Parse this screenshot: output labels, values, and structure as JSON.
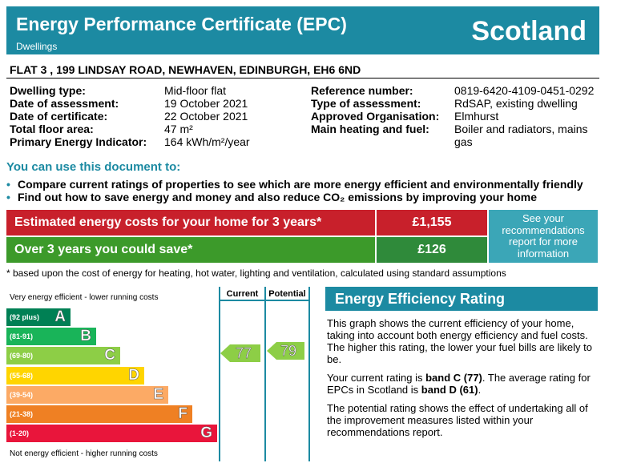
{
  "header": {
    "title": "Energy Performance Certificate (EPC)",
    "subtitle": "Dwellings",
    "country": "Scotland"
  },
  "address": "FLAT 3 , 199 LINDSAY ROAD, NEWHAVEN, EDINBURGH, EH6 6ND",
  "details": {
    "left": [
      {
        "label": "Dwelling type:",
        "value": "Mid-floor flat"
      },
      {
        "label": "Date of assessment:",
        "value": "19 October 2021"
      },
      {
        "label": "Date of certificate:",
        "value": "22 October 2021"
      },
      {
        "label": "Total floor area:",
        "value": "47 m²"
      },
      {
        "label": "Primary Energy Indicator:",
        "value": "164 kWh/m²/year"
      }
    ],
    "right": [
      {
        "label": "Reference number:",
        "value": "0819-6420-4109-0451-0292"
      },
      {
        "label": "Type of assessment:",
        "value": "RdSAP, existing dwelling"
      },
      {
        "label": "Approved Organisation:",
        "value": "Elmhurst"
      },
      {
        "label": "Main heating and fuel:",
        "value": "Boiler and radiators, mains gas"
      }
    ]
  },
  "uses": {
    "heading": "You can use this document to:",
    "items": [
      "Compare current ratings of properties to see which are more energy efficient and environmentally friendly",
      "Find out how to save energy and money and also reduce CO₂ emissions by improving your home"
    ]
  },
  "costs": {
    "rows": [
      {
        "label": "Estimated energy costs for your home for 3 years*",
        "value": "£1,155"
      },
      {
        "label": "Over 3 years you could save*",
        "value": "£126"
      }
    ],
    "note": "See your recommendations report for more information",
    "footnote": "* based upon the cost of energy for heating, hot water, lighting and ventilation, calculated using standard assumptions"
  },
  "rating_chart": {
    "top_label": "Very energy efficient - lower running costs",
    "bottom_label": "Not energy efficient - higher running costs",
    "current_header": "Current",
    "potential_header": "Potential",
    "bands": [
      {
        "range": "(92 plus)",
        "letter": "A"
      },
      {
        "range": "(81-91)",
        "letter": "B"
      },
      {
        "range": "(69-80)",
        "letter": "C"
      },
      {
        "range": "(55-68)",
        "letter": "D"
      },
      {
        "range": "(39-54)",
        "letter": "E"
      },
      {
        "range": "(21-38)",
        "letter": "F"
      },
      {
        "range": "(1-20)",
        "letter": "G"
      }
    ],
    "current": "77",
    "potential": "79"
  },
  "efficiency": {
    "title": "Energy Efficiency Rating",
    "paragraphs": [
      [
        {
          "text": "This graph shows the current efficiency of your home, taking into account both energy efficiency and fuel costs. The higher this rating, the lower your fuel bills are likely to be.",
          "bold": false
        }
      ],
      [
        {
          "text": "Your current rating is ",
          "bold": false
        },
        {
          "text": "band C (77)",
          "bold": true
        },
        {
          "text": ". The average rating for EPCs in Scotland is ",
          "bold": false
        },
        {
          "text": "band D (61)",
          "bold": true
        },
        {
          "text": ".",
          "bold": false
        }
      ],
      [
        {
          "text": "The potential rating shows the effect of undertaking all of the improvement measures listed within your recommendations report.",
          "bold": false
        }
      ]
    ]
  }
}
